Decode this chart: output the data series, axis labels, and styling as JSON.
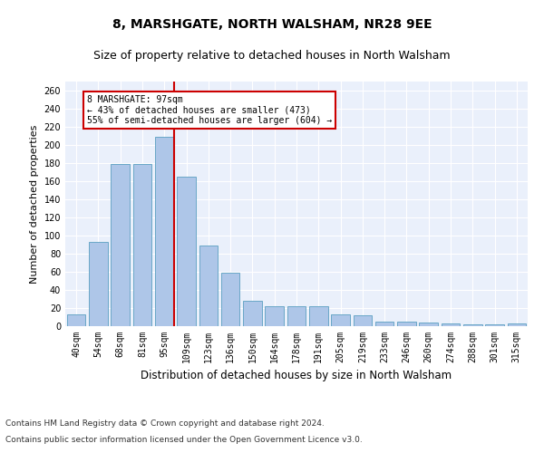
{
  "title1": "8, MARSHGATE, NORTH WALSHAM, NR28 9EE",
  "title2": "Size of property relative to detached houses in North Walsham",
  "xlabel": "Distribution of detached houses by size in North Walsham",
  "ylabel": "Number of detached properties",
  "categories": [
    "40sqm",
    "54sqm",
    "68sqm",
    "81sqm",
    "95sqm",
    "109sqm",
    "123sqm",
    "136sqm",
    "150sqm",
    "164sqm",
    "178sqm",
    "191sqm",
    "205sqm",
    "219sqm",
    "233sqm",
    "246sqm",
    "260sqm",
    "274sqm",
    "288sqm",
    "301sqm",
    "315sqm"
  ],
  "values": [
    13,
    93,
    179,
    179,
    209,
    165,
    89,
    59,
    28,
    22,
    22,
    22,
    13,
    12,
    5,
    5,
    4,
    3,
    2,
    2,
    3
  ],
  "bar_color": "#aec6e8",
  "bar_edgecolor": "#5a9fc0",
  "vline_index": 4,
  "vline_color": "#cc0000",
  "annotation_line1": "8 MARSHGATE: 97sqm",
  "annotation_line2": "← 43% of detached houses are smaller (473)",
  "annotation_line3": "55% of semi-detached houses are larger (604) →",
  "annotation_box_edgecolor": "#cc0000",
  "ylim": [
    0,
    270
  ],
  "yticks": [
    0,
    20,
    40,
    60,
    80,
    100,
    120,
    140,
    160,
    180,
    200,
    220,
    240,
    260
  ],
  "footer1": "Contains HM Land Registry data © Crown copyright and database right 2024.",
  "footer2": "Contains public sector information licensed under the Open Government Licence v3.0.",
  "bg_color": "#eaf0fb",
  "grid_color": "#ffffff",
  "title1_fontsize": 10,
  "title2_fontsize": 9,
  "xlabel_fontsize": 8.5,
  "ylabel_fontsize": 8,
  "tick_fontsize": 7,
  "footer_fontsize": 6.5
}
